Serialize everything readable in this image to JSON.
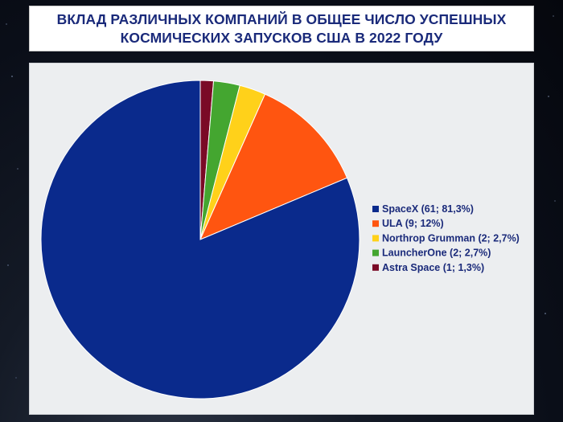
{
  "chart_data": {
    "type": "pie",
    "title": "ВКЛАД РАЗЛИЧНЫХ КОМПАНИЙ В ОБЩЕЕ ЧИСЛО УСПЕШНЫХ КОСМИЧЕСКИХ ЗАПУСКОВ США В 2022 ГОДУ",
    "legend_position": "right",
    "slices": [
      {
        "label": "SpaceX (61; 81,3%)",
        "value": 61,
        "color": "#0a2a8c"
      },
      {
        "label": "ULA (9; 12%)",
        "value": 9,
        "color": "#ff5510"
      },
      {
        "label": "Northrop Grumman (2; 2,7%)",
        "value": 2,
        "color": "#ffd11a"
      },
      {
        "label": "LauncherOne (2; 2,7%)",
        "value": 2,
        "color": "#44a630"
      },
      {
        "label": "Astra Space (1; 1,3%)",
        "value": 1,
        "color": "#7a0a26"
      }
    ]
  }
}
